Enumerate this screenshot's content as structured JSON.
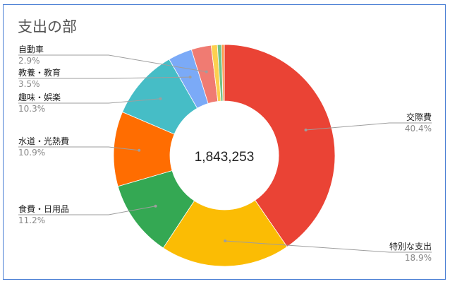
{
  "chart_data": {
    "type": "pie",
    "title": "支出の部",
    "center_label": "1,843,253",
    "slices": [
      {
        "label": "交際費",
        "value": 40.4,
        "pct_label": "40.4%",
        "color": "#ea4335"
      },
      {
        "label": "特別な支出",
        "value": 18.9,
        "pct_label": "18.9%",
        "color": "#fbbc04"
      },
      {
        "label": "食費・日用品",
        "value": 11.2,
        "pct_label": "11.2%",
        "color": "#34a853"
      },
      {
        "label": "水道・光熱費",
        "value": 10.9,
        "pct_label": "10.9%",
        "color": "#ff6d01"
      },
      {
        "label": "趣味・娯楽",
        "value": 10.3,
        "pct_label": "10.3%",
        "color": "#46bdc6"
      },
      {
        "label": "教養・教育",
        "value": 3.5,
        "pct_label": "3.5%",
        "color": "#7baaf7"
      },
      {
        "label": "自動車",
        "value": 2.9,
        "pct_label": "2.9%",
        "color": "#f07b72"
      },
      {
        "label": "",
        "value": 0.9,
        "pct_label": "",
        "color": "#fcd04f"
      },
      {
        "label": "",
        "value": 0.6,
        "pct_label": "",
        "color": "#71c287"
      },
      {
        "label": "",
        "value": 0.4,
        "pct_label": "",
        "color": "#ff994d"
      }
    ]
  }
}
